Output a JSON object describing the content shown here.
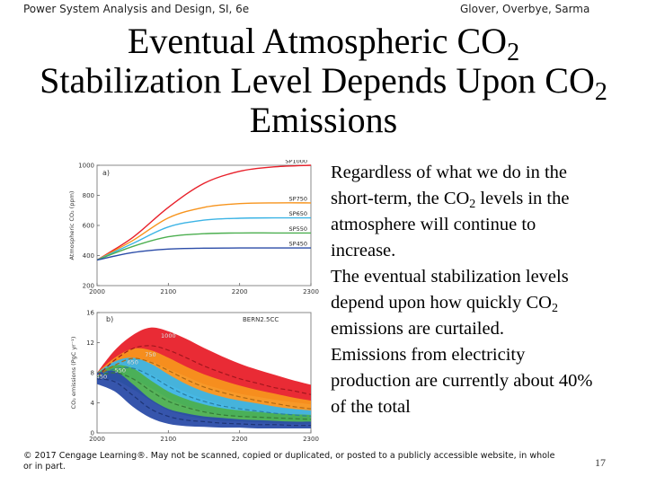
{
  "header": {
    "left": "Power System Analysis and Design, SI, 6e",
    "right": "Glover, Overbye, Sarma"
  },
  "title": {
    "line1_a": "Eventual Atmospheric CO",
    "line1_sub": "2",
    "line2_a": "Stabilization Level Depends Upon CO",
    "line2_sub": "2",
    "line3": "Emissions"
  },
  "body": {
    "p1_a": "Regardless of what we do in the short-term, the CO",
    "p1_sub": "2",
    "p1_b": " levels in the atmosphere will continue to increase.",
    "p2_a": "The eventual stabilization levels depend upon how quickly CO",
    "p2_sub": "2",
    "p2_b": " emissions are curtailed.",
    "p3": "Emissions from electricity production are currently about 40% of the total"
  },
  "footer": {
    "copyright": "© 2017 Cengage Learning®. May not be scanned, copied or duplicated, or posted to a publicly accessible website, in whole or in part."
  },
  "page_number": "17",
  "colors": {
    "sp1000": "#e8202a",
    "sp750": "#f7941d",
    "sp650": "#3cb4e5",
    "sp550": "#4caf50",
    "sp450": "#2b4ca8"
  },
  "chart_data": [
    {
      "type": "line",
      "panel_label": "a)",
      "ylabel": "Atmospheric CO₂ (ppm)",
      "xlim": [
        2000,
        2300
      ],
      "ylim": [
        200,
        1000
      ],
      "xticks": [
        2000,
        2100,
        2200,
        2300
      ],
      "yticks": [
        200,
        400,
        600,
        800,
        1000
      ],
      "series": [
        {
          "name": "SP1000",
          "color": "#e8202a",
          "x": [
            2000,
            2050,
            2100,
            2150,
            2200,
            2250,
            2300
          ],
          "y": [
            370,
            520,
            720,
            880,
            960,
            990,
            1000
          ]
        },
        {
          "name": "SP750",
          "color": "#f7941d",
          "x": [
            2000,
            2050,
            2100,
            2150,
            2200,
            2250,
            2300
          ],
          "y": [
            370,
            500,
            650,
            720,
            745,
            750,
            750
          ]
        },
        {
          "name": "SP650",
          "color": "#3cb4e5",
          "x": [
            2000,
            2050,
            2100,
            2150,
            2200,
            2250,
            2300
          ],
          "y": [
            370,
            480,
            590,
            635,
            648,
            650,
            650
          ]
        },
        {
          "name": "SP550",
          "color": "#4caf50",
          "x": [
            2000,
            2050,
            2100,
            2150,
            2200,
            2250,
            2300
          ],
          "y": [
            370,
            460,
            525,
            545,
            550,
            550,
            550
          ]
        },
        {
          "name": "SP450",
          "color": "#2b4ca8",
          "x": [
            2000,
            2050,
            2100,
            2150,
            2200,
            2250,
            2300
          ],
          "y": [
            370,
            420,
            443,
            449,
            450,
            450,
            450
          ]
        }
      ]
    },
    {
      "type": "area",
      "panel_label": "b)",
      "model_label": "BERN2.5CC",
      "ylabel": "CO₂ emissions (PgC yr⁻¹)",
      "xlim": [
        2000,
        2300
      ],
      "ylim": [
        0,
        16
      ],
      "xticks": [
        2000,
        2100,
        2200,
        2300
      ],
      "yticks": [
        0,
        4,
        8,
        12,
        16
      ],
      "x": [
        2000,
        2025,
        2050,
        2075,
        2100,
        2125,
        2150,
        2175,
        2200,
        2225,
        2250,
        2275,
        2300
      ],
      "series": [
        {
          "name": "1000",
          "color": "#e8202a",
          "upper": [
            8,
            11,
            13,
            14,
            13.5,
            12.5,
            11.3,
            10.2,
            9.2,
            8.4,
            7.7,
            7.0,
            6.4
          ],
          "lower": [
            7,
            8.5,
            9.5,
            9.5,
            8.5,
            7.5,
            6.5,
            5.8,
            5.2,
            4.8,
            4.4,
            4.1,
            3.8
          ],
          "mean": [
            7.5,
            9.7,
            11.2,
            11.6,
            11.0,
            10.0,
            8.9,
            8.0,
            7.2,
            6.6,
            6.0,
            5.6,
            5.1
          ]
        },
        {
          "name": "750",
          "color": "#f7941d",
          "upper": [
            8,
            10,
            11.2,
            11,
            10,
            8.8,
            7.8,
            7.0,
            6.3,
            5.7,
            5.2,
            4.7,
            4.3
          ],
          "lower": [
            7,
            8.0,
            8.5,
            7.8,
            6.5,
            5.4,
            4.5,
            3.8,
            3.3,
            2.9,
            2.6,
            2.3,
            2.0
          ],
          "mean": [
            7.5,
            9.0,
            9.9,
            9.4,
            8.3,
            7.1,
            6.1,
            5.4,
            4.8,
            4.3,
            3.9,
            3.5,
            3.2
          ]
        },
        {
          "name": "650",
          "color": "#3cb4e5",
          "upper": [
            8,
            9.5,
            10,
            9.2,
            7.8,
            6.5,
            5.5,
            4.8,
            4.3,
            3.9,
            3.5,
            3.2,
            3.0
          ],
          "lower": [
            7,
            7.5,
            7.2,
            6.0,
            4.6,
            3.6,
            2.9,
            2.4,
            2.1,
            1.9,
            1.7,
            1.6,
            1.5
          ],
          "mean": [
            7.5,
            8.5,
            8.6,
            7.6,
            6.2,
            5.0,
            4.2,
            3.6,
            3.2,
            2.9,
            2.6,
            2.4,
            2.2
          ]
        },
        {
          "name": "550",
          "color": "#4caf50",
          "upper": [
            8,
            9.0,
            8.6,
            7.0,
            5.5,
            4.5,
            3.8,
            3.3,
            3.0,
            2.8,
            2.6,
            2.5,
            2.4
          ],
          "lower": [
            7,
            7.0,
            5.8,
            4.3,
            3.0,
            2.3,
            1.9,
            1.6,
            1.5,
            1.4,
            1.3,
            1.2,
            1.2
          ],
          "mean": [
            7.5,
            8.0,
            7.2,
            5.6,
            4.2,
            3.4,
            2.8,
            2.4,
            2.2,
            2.1,
            2.0,
            1.9,
            1.8
          ]
        },
        {
          "name": "450",
          "color": "#2b4ca8",
          "upper": [
            8,
            8.2,
            6.5,
            4.5,
            3.2,
            2.6,
            2.2,
            2.0,
            1.8,
            1.7,
            1.6,
            1.5,
            1.5
          ],
          "lower": [
            6.5,
            5.5,
            3.5,
            2.0,
            1.2,
            0.9,
            0.8,
            0.7,
            0.7,
            0.6,
            0.6,
            0.6,
            0.6
          ],
          "mean": [
            7.2,
            6.8,
            5.0,
            3.2,
            2.2,
            1.7,
            1.5,
            1.3,
            1.2,
            1.1,
            1.1,
            1.0,
            1.0
          ]
        }
      ]
    }
  ]
}
